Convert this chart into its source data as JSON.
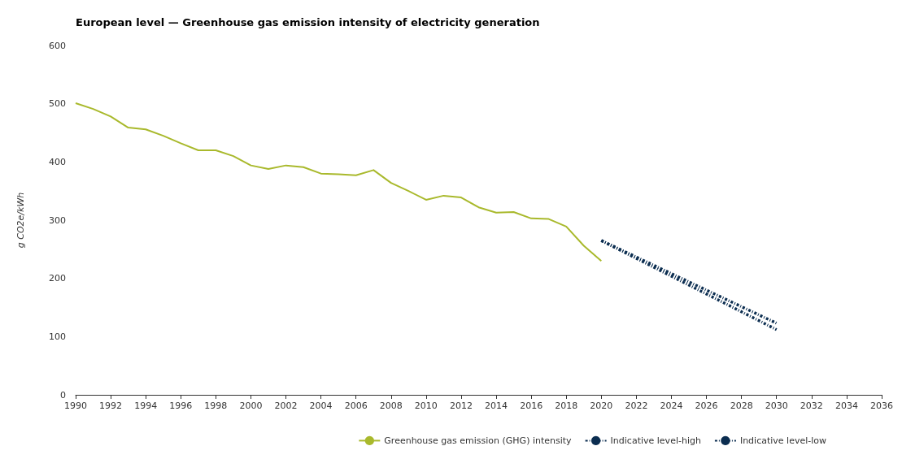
{
  "chart_data": {
    "type": "line",
    "title": "European level — Greenhouse gas emission intensity of electricity generation",
    "ylabel": "g CO2e/kWh",
    "xlim": [
      1990,
      2036
    ],
    "xticks": [
      1990,
      1992,
      1994,
      1996,
      1998,
      2000,
      2002,
      2004,
      2006,
      2008,
      2010,
      2012,
      2014,
      2016,
      2018,
      2020,
      2022,
      2024,
      2026,
      2028,
      2030,
      2032,
      2034,
      2036
    ],
    "ylim": [
      0,
      600
    ],
    "yticks": [
      0,
      100,
      200,
      300,
      400,
      500,
      600
    ],
    "grid": false,
    "legend": "bottom right",
    "marker": "none",
    "series": [
      {
        "name": "Greenhouse gas emission (GHG) intensity",
        "color": "#a9b92c",
        "line_style": "solid",
        "x": [
          1990,
          1991,
          1992,
          1993,
          1994,
          1995,
          1996,
          1997,
          1998,
          1999,
          2000,
          2001,
          2002,
          2003,
          2004,
          2005,
          2006,
          2007,
          2008,
          2009,
          2010,
          2011,
          2012,
          2013,
          2014,
          2015,
          2016,
          2017,
          2018,
          2019,
          2020
        ],
        "values": [
          501,
          491,
          478,
          459,
          456,
          445,
          432,
          420,
          420,
          410,
          394,
          388,
          394,
          391,
          380,
          379,
          377,
          386,
          364,
          350,
          335,
          342,
          339,
          322,
          313,
          314,
          303,
          302,
          289,
          256,
          230
        ]
      },
      {
        "name": "Indicative level-high",
        "color": "#0b2d50",
        "line_style": "dashed",
        "x": [
          2020,
          2030
        ],
        "values": [
          265,
          123
        ]
      },
      {
        "name": "Indicative level-low",
        "color": "#0b2d50",
        "line_style": "dashed",
        "x": [
          2020,
          2030
        ],
        "values": [
          265,
          112
        ]
      }
    ]
  }
}
